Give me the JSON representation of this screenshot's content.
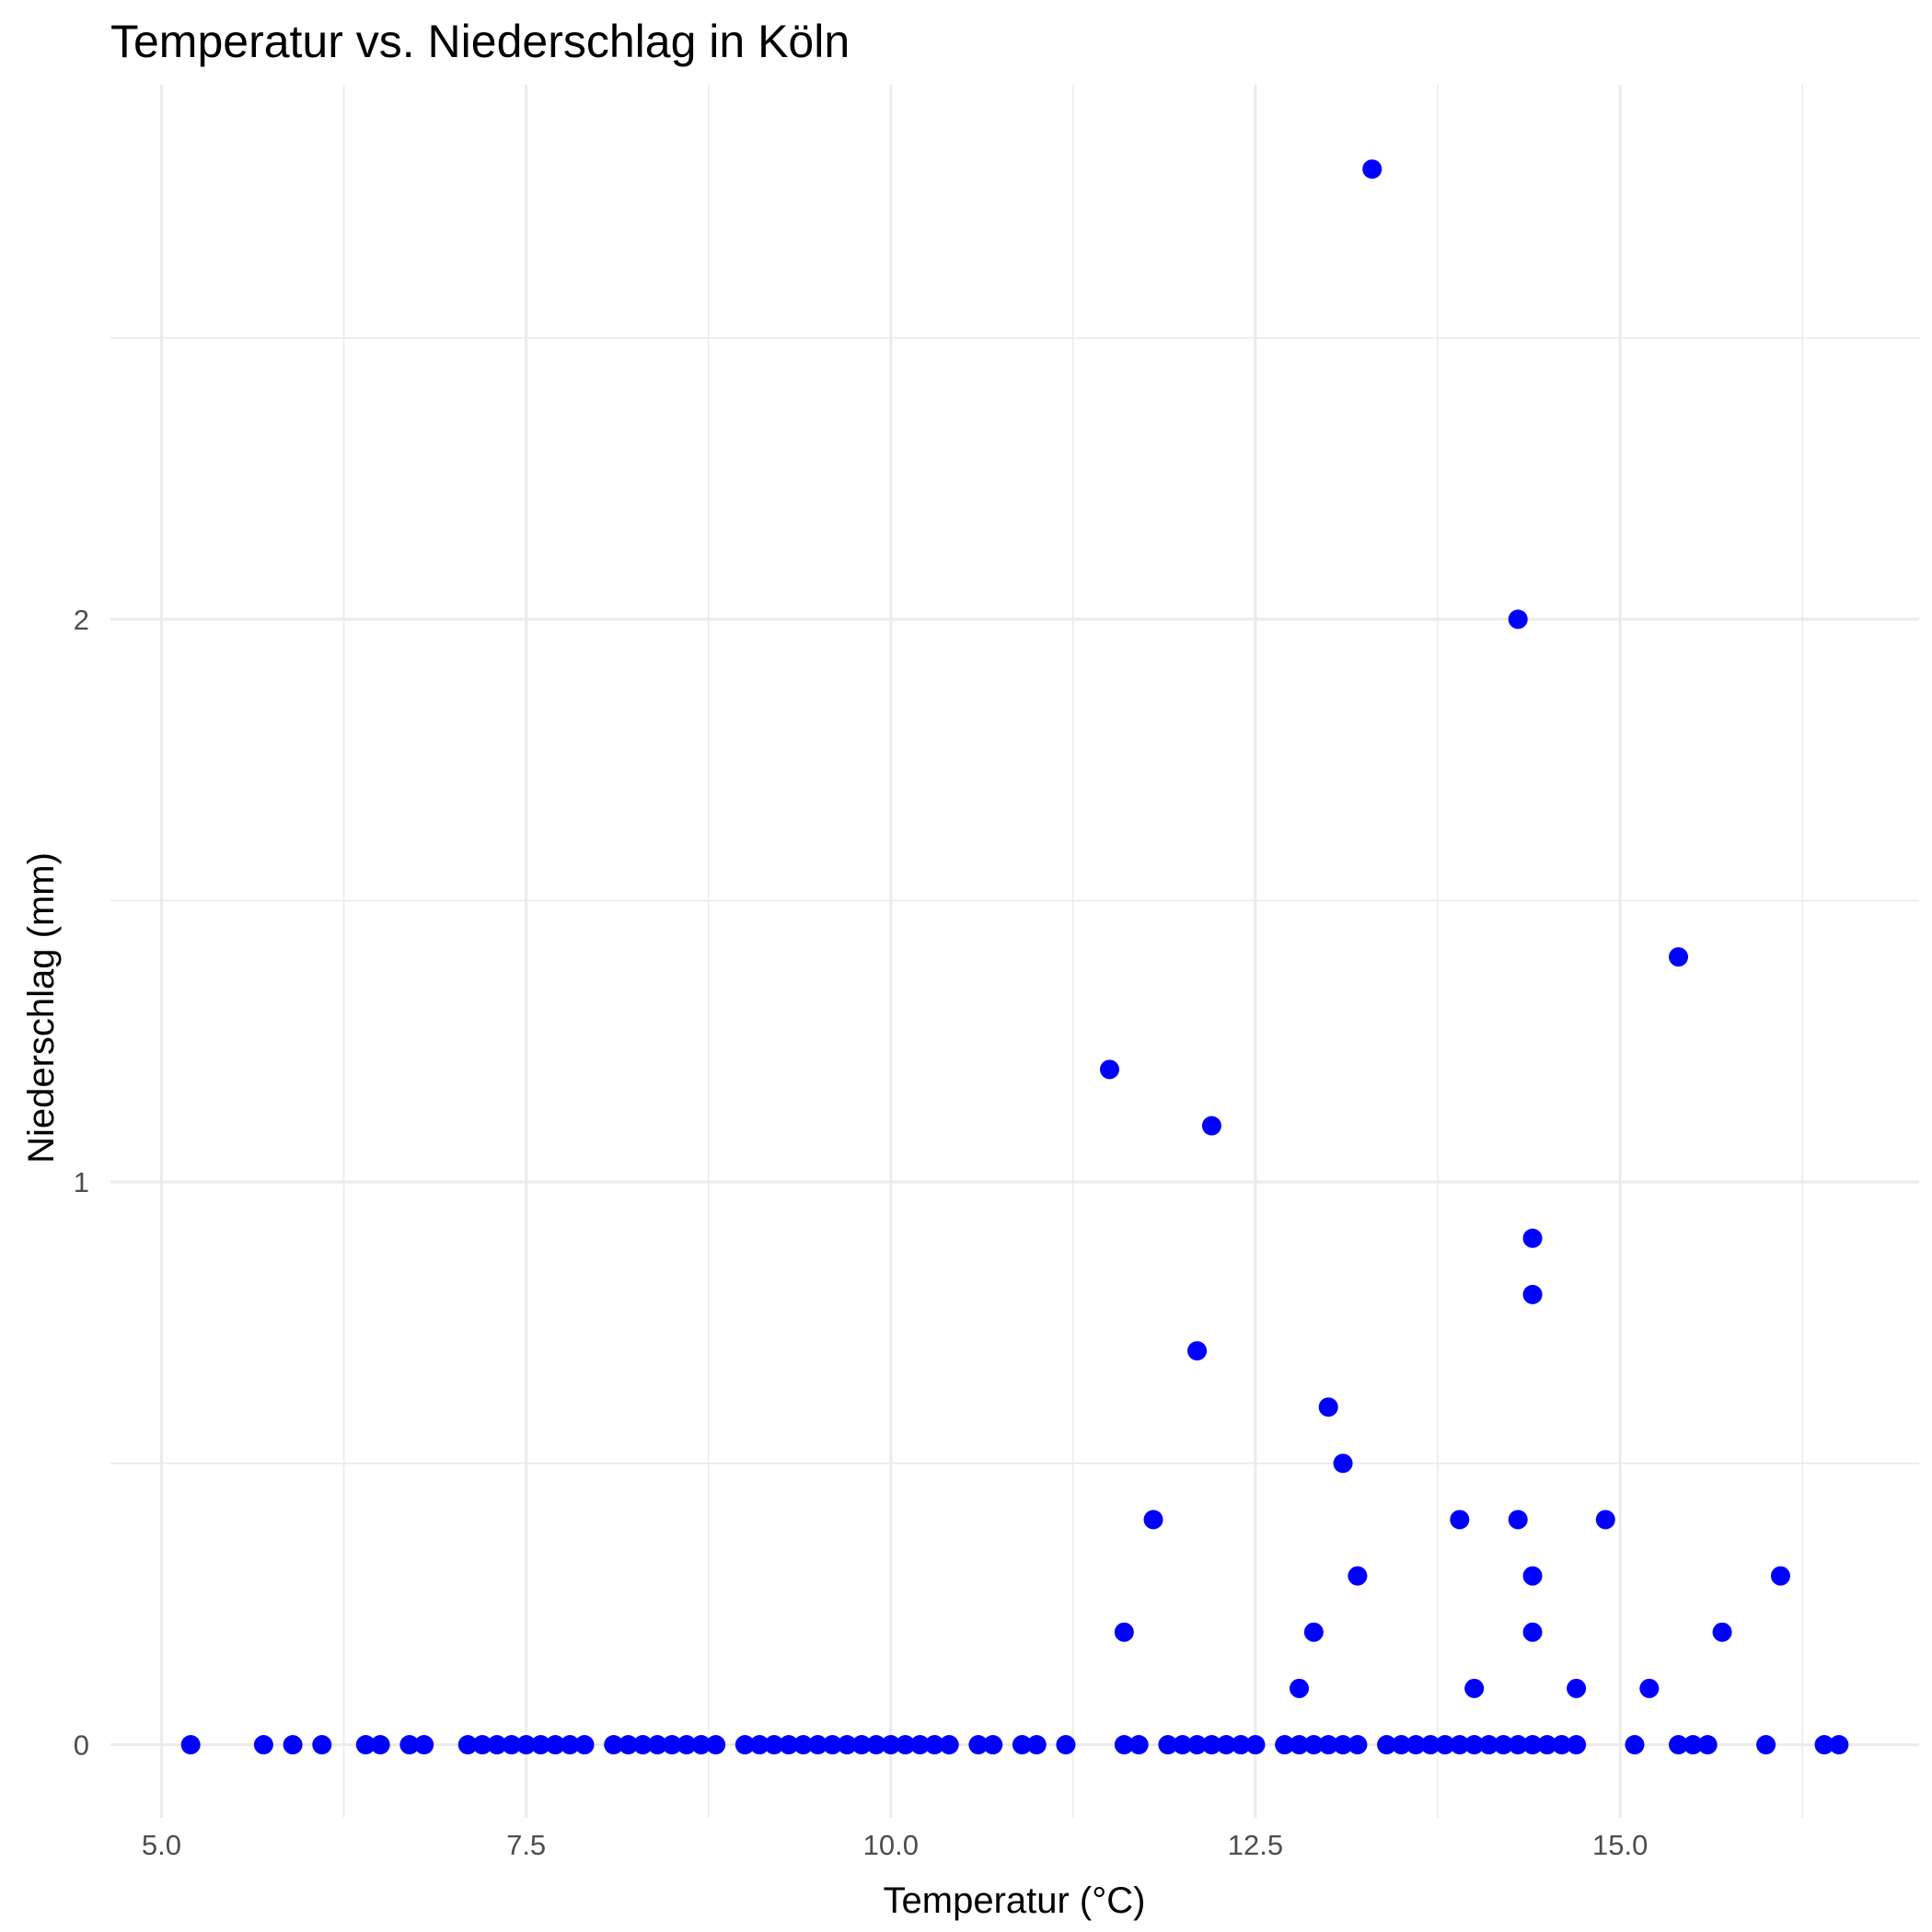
{
  "chart_data": {
    "type": "scatter",
    "title": "Temperatur vs. Niederschlag in Köln",
    "xlabel": "Temperatur (°C)",
    "ylabel": "Niederschlag (mm)",
    "xlim": [
      4.65,
      17.05
    ],
    "ylim": [
      -0.13,
      2.95
    ],
    "xticks": [
      5.0,
      7.5,
      10.0,
      12.5,
      15.0
    ],
    "xtick_labels": [
      "5.0",
      "7.5",
      "10.0",
      "12.5",
      "15.0"
    ],
    "yticks": [
      0,
      1,
      2
    ],
    "ytick_labels": [
      "0",
      "1",
      "2"
    ],
    "grid": true,
    "point_color": "#0000ff",
    "points": [
      {
        "x": 5.2,
        "y": 0
      },
      {
        "x": 5.7,
        "y": 0
      },
      {
        "x": 5.9,
        "y": 0
      },
      {
        "x": 6.1,
        "y": 0
      },
      {
        "x": 6.4,
        "y": 0
      },
      {
        "x": 6.5,
        "y": 0
      },
      {
        "x": 6.7,
        "y": 0
      },
      {
        "x": 6.8,
        "y": 0
      },
      {
        "x": 7.1,
        "y": 0
      },
      {
        "x": 7.2,
        "y": 0
      },
      {
        "x": 7.3,
        "y": 0
      },
      {
        "x": 7.4,
        "y": 0
      },
      {
        "x": 7.5,
        "y": 0
      },
      {
        "x": 7.6,
        "y": 0
      },
      {
        "x": 7.7,
        "y": 0
      },
      {
        "x": 7.8,
        "y": 0
      },
      {
        "x": 7.9,
        "y": 0
      },
      {
        "x": 8.1,
        "y": 0
      },
      {
        "x": 8.2,
        "y": 0
      },
      {
        "x": 8.3,
        "y": 0
      },
      {
        "x": 8.4,
        "y": 0
      },
      {
        "x": 8.5,
        "y": 0
      },
      {
        "x": 8.6,
        "y": 0
      },
      {
        "x": 8.7,
        "y": 0
      },
      {
        "x": 8.8,
        "y": 0
      },
      {
        "x": 9.0,
        "y": 0
      },
      {
        "x": 9.1,
        "y": 0
      },
      {
        "x": 9.2,
        "y": 0
      },
      {
        "x": 9.3,
        "y": 0
      },
      {
        "x": 9.4,
        "y": 0
      },
      {
        "x": 9.5,
        "y": 0
      },
      {
        "x": 9.6,
        "y": 0
      },
      {
        "x": 9.7,
        "y": 0
      },
      {
        "x": 9.8,
        "y": 0
      },
      {
        "x": 9.9,
        "y": 0
      },
      {
        "x": 10.0,
        "y": 0
      },
      {
        "x": 10.1,
        "y": 0
      },
      {
        "x": 10.2,
        "y": 0
      },
      {
        "x": 10.3,
        "y": 0
      },
      {
        "x": 10.4,
        "y": 0
      },
      {
        "x": 10.6,
        "y": 0
      },
      {
        "x": 10.7,
        "y": 0
      },
      {
        "x": 10.9,
        "y": 0
      },
      {
        "x": 11.0,
        "y": 0
      },
      {
        "x": 11.2,
        "y": 0
      },
      {
        "x": 11.6,
        "y": 0
      },
      {
        "x": 11.7,
        "y": 0
      },
      {
        "x": 11.9,
        "y": 0
      },
      {
        "x": 12.0,
        "y": 0
      },
      {
        "x": 12.1,
        "y": 0
      },
      {
        "x": 12.2,
        "y": 0
      },
      {
        "x": 12.3,
        "y": 0
      },
      {
        "x": 12.4,
        "y": 0
      },
      {
        "x": 12.5,
        "y": 0
      },
      {
        "x": 12.7,
        "y": 0
      },
      {
        "x": 12.8,
        "y": 0
      },
      {
        "x": 12.9,
        "y": 0
      },
      {
        "x": 13.0,
        "y": 0
      },
      {
        "x": 13.1,
        "y": 0
      },
      {
        "x": 13.2,
        "y": 0
      },
      {
        "x": 13.4,
        "y": 0
      },
      {
        "x": 13.5,
        "y": 0
      },
      {
        "x": 13.6,
        "y": 0
      },
      {
        "x": 13.7,
        "y": 0
      },
      {
        "x": 13.8,
        "y": 0
      },
      {
        "x": 13.9,
        "y": 0
      },
      {
        "x": 14.0,
        "y": 0
      },
      {
        "x": 14.1,
        "y": 0
      },
      {
        "x": 14.2,
        "y": 0
      },
      {
        "x": 14.3,
        "y": 0
      },
      {
        "x": 14.4,
        "y": 0
      },
      {
        "x": 14.5,
        "y": 0
      },
      {
        "x": 14.6,
        "y": 0
      },
      {
        "x": 14.7,
        "y": 0
      },
      {
        "x": 15.1,
        "y": 0
      },
      {
        "x": 15.4,
        "y": 0
      },
      {
        "x": 15.5,
        "y": 0
      },
      {
        "x": 15.6,
        "y": 0
      },
      {
        "x": 16.0,
        "y": 0
      },
      {
        "x": 16.4,
        "y": 0
      },
      {
        "x": 16.5,
        "y": 0
      },
      {
        "x": 11.6,
        "y": 0.2
      },
      {
        "x": 12.8,
        "y": 0.1
      },
      {
        "x": 12.9,
        "y": 0.2
      },
      {
        "x": 13.2,
        "y": 0.3
      },
      {
        "x": 14.0,
        "y": 0.1
      },
      {
        "x": 14.4,
        "y": 0.2
      },
      {
        "x": 14.4,
        "y": 0.3
      },
      {
        "x": 14.7,
        "y": 0.1
      },
      {
        "x": 15.2,
        "y": 0.1
      },
      {
        "x": 15.7,
        "y": 0.2
      },
      {
        "x": 16.1,
        "y": 0.3
      },
      {
        "x": 11.8,
        "y": 0.4
      },
      {
        "x": 13.9,
        "y": 0.4
      },
      {
        "x": 14.3,
        "y": 0.4
      },
      {
        "x": 14.9,
        "y": 0.4
      },
      {
        "x": 13.1,
        "y": 0.5
      },
      {
        "x": 13.0,
        "y": 0.6
      },
      {
        "x": 12.1,
        "y": 0.7
      },
      {
        "x": 14.4,
        "y": 0.8
      },
      {
        "x": 14.4,
        "y": 0.9
      },
      {
        "x": 12.2,
        "y": 1.1
      },
      {
        "x": 11.5,
        "y": 1.2
      },
      {
        "x": 15.4,
        "y": 1.4
      },
      {
        "x": 14.3,
        "y": 2.0
      },
      {
        "x": 13.3,
        "y": 2.8
      }
    ]
  }
}
